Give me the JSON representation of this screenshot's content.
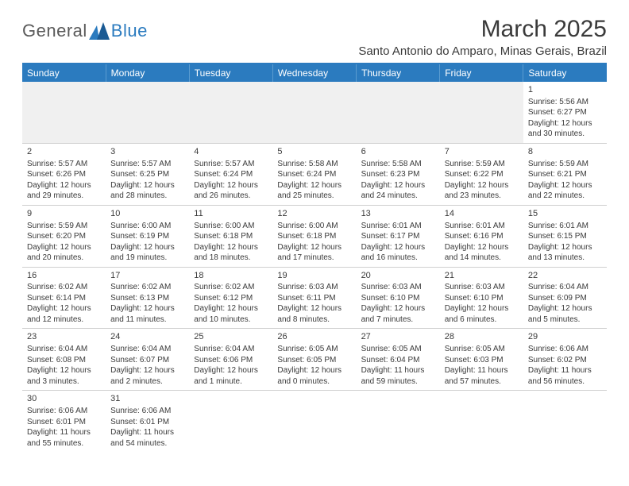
{
  "logo": {
    "word1": "General",
    "word2": "Blue",
    "color1": "#5a5a5a",
    "color2": "#2b7bbf"
  },
  "title": "March 2025",
  "location": "Santo Antonio do Amparo, Minas Gerais, Brazil",
  "header_bg": "#2b7bbf",
  "header_text": "#ffffff",
  "border_color": "#cfcfcf",
  "empty_bg": "#f0f0f0",
  "days": [
    "Sunday",
    "Monday",
    "Tuesday",
    "Wednesday",
    "Thursday",
    "Friday",
    "Saturday"
  ],
  "weeks": [
    [
      null,
      null,
      null,
      null,
      null,
      null,
      {
        "n": "1",
        "sr": "5:56 AM",
        "ss": "6:27 PM",
        "dl": "12 hours and 30 minutes."
      }
    ],
    [
      {
        "n": "2",
        "sr": "5:57 AM",
        "ss": "6:26 PM",
        "dl": "12 hours and 29 minutes."
      },
      {
        "n": "3",
        "sr": "5:57 AM",
        "ss": "6:25 PM",
        "dl": "12 hours and 28 minutes."
      },
      {
        "n": "4",
        "sr": "5:57 AM",
        "ss": "6:24 PM",
        "dl": "12 hours and 26 minutes."
      },
      {
        "n": "5",
        "sr": "5:58 AM",
        "ss": "6:24 PM",
        "dl": "12 hours and 25 minutes."
      },
      {
        "n": "6",
        "sr": "5:58 AM",
        "ss": "6:23 PM",
        "dl": "12 hours and 24 minutes."
      },
      {
        "n": "7",
        "sr": "5:59 AM",
        "ss": "6:22 PM",
        "dl": "12 hours and 23 minutes."
      },
      {
        "n": "8",
        "sr": "5:59 AM",
        "ss": "6:21 PM",
        "dl": "12 hours and 22 minutes."
      }
    ],
    [
      {
        "n": "9",
        "sr": "5:59 AM",
        "ss": "6:20 PM",
        "dl": "12 hours and 20 minutes."
      },
      {
        "n": "10",
        "sr": "6:00 AM",
        "ss": "6:19 PM",
        "dl": "12 hours and 19 minutes."
      },
      {
        "n": "11",
        "sr": "6:00 AM",
        "ss": "6:18 PM",
        "dl": "12 hours and 18 minutes."
      },
      {
        "n": "12",
        "sr": "6:00 AM",
        "ss": "6:18 PM",
        "dl": "12 hours and 17 minutes."
      },
      {
        "n": "13",
        "sr": "6:01 AM",
        "ss": "6:17 PM",
        "dl": "12 hours and 16 minutes."
      },
      {
        "n": "14",
        "sr": "6:01 AM",
        "ss": "6:16 PM",
        "dl": "12 hours and 14 minutes."
      },
      {
        "n": "15",
        "sr": "6:01 AM",
        "ss": "6:15 PM",
        "dl": "12 hours and 13 minutes."
      }
    ],
    [
      {
        "n": "16",
        "sr": "6:02 AM",
        "ss": "6:14 PM",
        "dl": "12 hours and 12 minutes."
      },
      {
        "n": "17",
        "sr": "6:02 AM",
        "ss": "6:13 PM",
        "dl": "12 hours and 11 minutes."
      },
      {
        "n": "18",
        "sr": "6:02 AM",
        "ss": "6:12 PM",
        "dl": "12 hours and 10 minutes."
      },
      {
        "n": "19",
        "sr": "6:03 AM",
        "ss": "6:11 PM",
        "dl": "12 hours and 8 minutes."
      },
      {
        "n": "20",
        "sr": "6:03 AM",
        "ss": "6:10 PM",
        "dl": "12 hours and 7 minutes."
      },
      {
        "n": "21",
        "sr": "6:03 AM",
        "ss": "6:10 PM",
        "dl": "12 hours and 6 minutes."
      },
      {
        "n": "22",
        "sr": "6:04 AM",
        "ss": "6:09 PM",
        "dl": "12 hours and 5 minutes."
      }
    ],
    [
      {
        "n": "23",
        "sr": "6:04 AM",
        "ss": "6:08 PM",
        "dl": "12 hours and 3 minutes."
      },
      {
        "n": "24",
        "sr": "6:04 AM",
        "ss": "6:07 PM",
        "dl": "12 hours and 2 minutes."
      },
      {
        "n": "25",
        "sr": "6:04 AM",
        "ss": "6:06 PM",
        "dl": "12 hours and 1 minute."
      },
      {
        "n": "26",
        "sr": "6:05 AM",
        "ss": "6:05 PM",
        "dl": "12 hours and 0 minutes."
      },
      {
        "n": "27",
        "sr": "6:05 AM",
        "ss": "6:04 PM",
        "dl": "11 hours and 59 minutes."
      },
      {
        "n": "28",
        "sr": "6:05 AM",
        "ss": "6:03 PM",
        "dl": "11 hours and 57 minutes."
      },
      {
        "n": "29",
        "sr": "6:06 AM",
        "ss": "6:02 PM",
        "dl": "11 hours and 56 minutes."
      }
    ],
    [
      {
        "n": "30",
        "sr": "6:06 AM",
        "ss": "6:01 PM",
        "dl": "11 hours and 55 minutes."
      },
      {
        "n": "31",
        "sr": "6:06 AM",
        "ss": "6:01 PM",
        "dl": "11 hours and 54 minutes."
      },
      null,
      null,
      null,
      null,
      null
    ]
  ],
  "labels": {
    "sunrise": "Sunrise:",
    "sunset": "Sunset:",
    "daylight": "Daylight:"
  }
}
